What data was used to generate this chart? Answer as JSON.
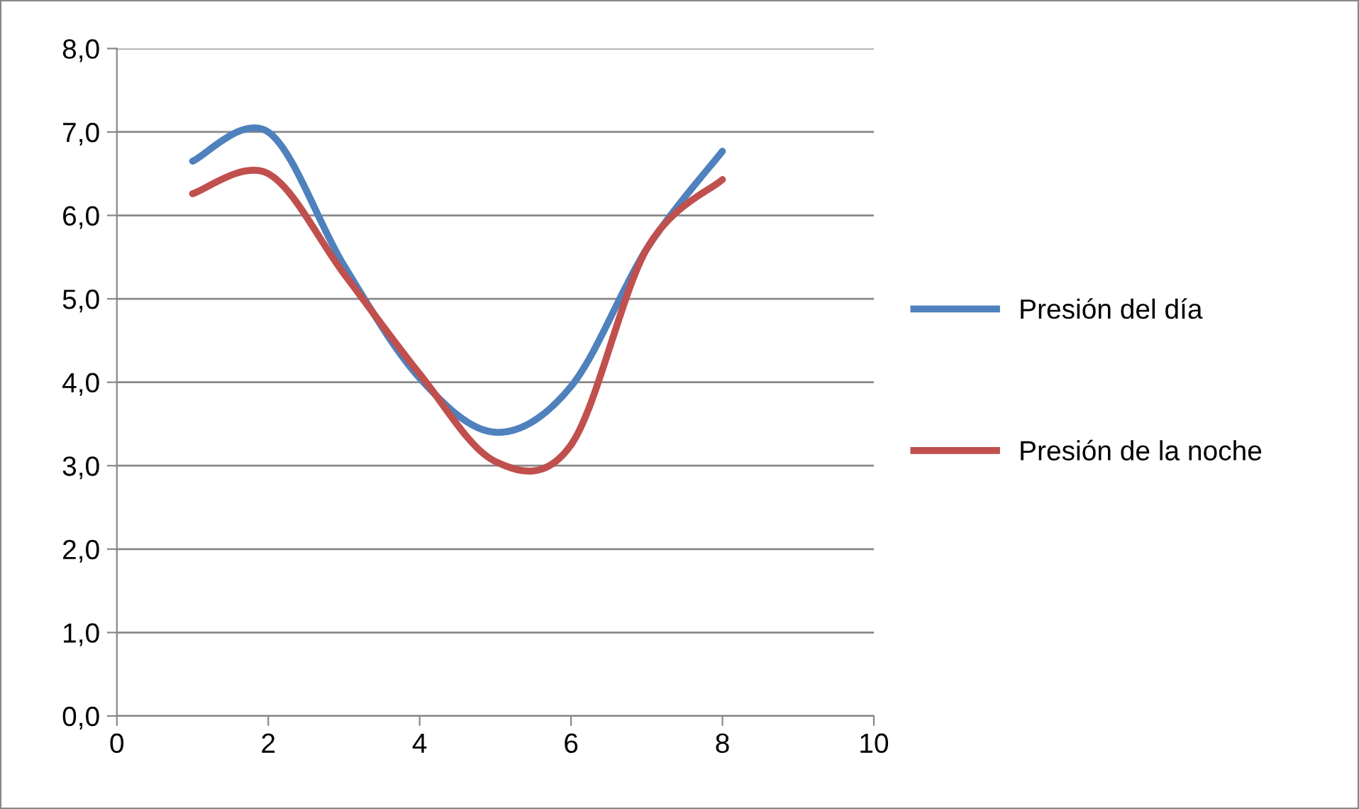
{
  "chart_data": {
    "type": "line",
    "x": [
      1,
      2,
      3,
      4,
      5,
      6,
      7,
      8
    ],
    "series": [
      {
        "name": "Presión del día",
        "color": "#4f81bd",
        "values": [
          6.65,
          7.0,
          5.4,
          4.05,
          3.4,
          3.95,
          5.6,
          6.77
        ]
      },
      {
        "name": "Presión de la noche",
        "color": "#c0504d",
        "values": [
          6.26,
          6.5,
          5.3,
          4.1,
          3.05,
          3.25,
          5.6,
          6.43
        ]
      }
    ],
    "xlim": [
      0,
      10
    ],
    "xticks": [
      0,
      2,
      4,
      6,
      8,
      10
    ],
    "ylim": [
      0,
      8
    ],
    "yticks": [
      {
        "value": 0,
        "label": "0,0"
      },
      {
        "value": 1,
        "label": "1,0"
      },
      {
        "value": 2,
        "label": "2,0"
      },
      {
        "value": 3,
        "label": "3,0"
      },
      {
        "value": 4,
        "label": "4,0"
      },
      {
        "value": 5,
        "label": "5,0"
      },
      {
        "value": 6,
        "label": "6,0"
      },
      {
        "value": 7,
        "label": "7,0"
      },
      {
        "value": 8,
        "label": "8,0"
      }
    ],
    "grid": "y",
    "legend": "right",
    "marker": "none",
    "line_style": "solid"
  }
}
